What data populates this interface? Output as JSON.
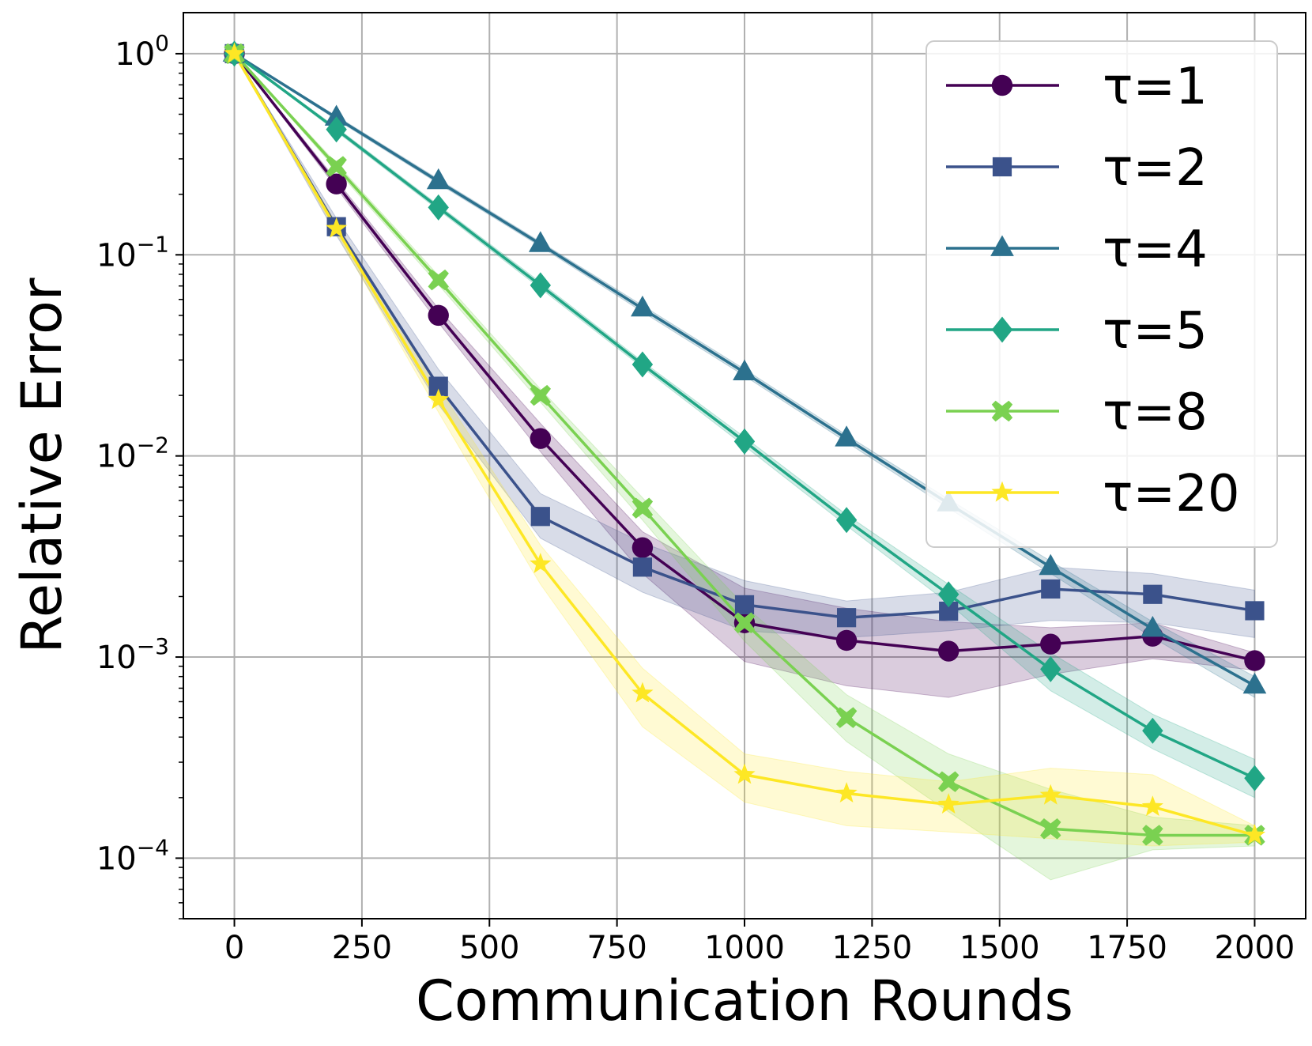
{
  "chart_data": {
    "type": "line",
    "yscale": "log",
    "xlabel": "Communication Rounds",
    "ylabel": "Relative Error",
    "xlim": [
      -100,
      2100
    ],
    "ylim": [
      5e-05,
      1.6
    ],
    "xticks": [
      0,
      250,
      500,
      750,
      1000,
      1250,
      1500,
      1750,
      2000
    ],
    "yticks": [
      {
        "value": 1,
        "base": "10",
        "exp": "0"
      },
      {
        "value": 0.1,
        "base": "10",
        "exp": "−1"
      },
      {
        "value": 0.01,
        "base": "10",
        "exp": "−2"
      },
      {
        "value": 0.001,
        "base": "10",
        "exp": "−3"
      },
      {
        "value": 0.0001,
        "base": "10",
        "exp": "−4"
      }
    ],
    "grid": true,
    "legend_position": "top-right",
    "x": [
      0,
      200,
      400,
      600,
      800,
      1000,
      1200,
      1400,
      1600,
      1800,
      2000
    ],
    "series": [
      {
        "name": "τ=1",
        "color": "#440154",
        "marker": "circle",
        "values": [
          1.0,
          0.225,
          0.05,
          0.0122,
          0.0035,
          0.00148,
          0.00121,
          0.00107,
          0.00116,
          0.00127,
          0.00096
        ],
        "lower": [
          1.0,
          0.215,
          0.046,
          0.0105,
          0.0026,
          0.00095,
          0.00072,
          0.00063,
          0.00082,
          0.00098,
          0.00086
        ],
        "upper": [
          1.0,
          0.235,
          0.054,
          0.0145,
          0.0042,
          0.0022,
          0.00175,
          0.0015,
          0.0014,
          0.00148,
          0.00105
        ]
      },
      {
        "name": "τ=2",
        "color": "#3b528b",
        "marker": "square",
        "values": [
          1.0,
          0.138,
          0.0222,
          0.005,
          0.0028,
          0.00182,
          0.00157,
          0.00169,
          0.00218,
          0.00205,
          0.0017
        ],
        "lower": [
          1.0,
          0.125,
          0.018,
          0.0039,
          0.0021,
          0.00135,
          0.00125,
          0.00135,
          0.00152,
          0.00148,
          0.00125
        ],
        "upper": [
          1.0,
          0.152,
          0.027,
          0.0065,
          0.0037,
          0.0024,
          0.0019,
          0.0021,
          0.0028,
          0.0026,
          0.00215
        ]
      },
      {
        "name": "τ=4",
        "color": "#21918c",
        "stroke": "#2c718e",
        "marker": "triangle",
        "values": [
          1.0,
          0.48,
          0.232,
          0.113,
          0.054,
          0.026,
          0.0122,
          0.0058,
          0.0028,
          0.00138,
          0.00072
        ],
        "lower": [
          1.0,
          0.47,
          0.226,
          0.11,
          0.052,
          0.025,
          0.0117,
          0.0055,
          0.0026,
          0.00125,
          0.00063
        ],
        "upper": [
          1.0,
          0.49,
          0.238,
          0.116,
          0.056,
          0.027,
          0.0127,
          0.0061,
          0.003,
          0.0015,
          0.0008
        ]
      },
      {
        "name": "τ=5",
        "color": "#21a685",
        "marker": "diamond",
        "values": [
          1.0,
          0.42,
          0.172,
          0.0705,
          0.0285,
          0.0118,
          0.0048,
          0.00205,
          0.00087,
          0.00043,
          0.00025
        ],
        "lower": [
          1.0,
          0.41,
          0.167,
          0.068,
          0.0275,
          0.0112,
          0.0045,
          0.00185,
          0.00068,
          0.00035,
          0.0002
        ],
        "upper": [
          1.0,
          0.43,
          0.177,
          0.073,
          0.0295,
          0.0124,
          0.0051,
          0.0023,
          0.00105,
          0.00052,
          0.00031
        ]
      },
      {
        "name": "τ=8",
        "color": "#7ad151",
        "marker": "x",
        "values": [
          1.0,
          0.275,
          0.075,
          0.02,
          0.0055,
          0.00148,
          0.0005,
          0.00024,
          0.00014,
          0.00013,
          0.00013
        ],
        "lower": [
          1.0,
          0.265,
          0.071,
          0.0185,
          0.0048,
          0.0012,
          0.00038,
          0.00017,
          7.8e-05,
          0.00011,
          0.000115
        ],
        "upper": [
          1.0,
          0.285,
          0.079,
          0.0215,
          0.0062,
          0.0018,
          0.00065,
          0.00033,
          0.00022,
          0.00016,
          0.000145
        ]
      },
      {
        "name": "τ=20",
        "color": "#fde725",
        "marker": "star",
        "values": [
          1.0,
          0.135,
          0.019,
          0.0029,
          0.00066,
          0.00026,
          0.00021,
          0.000185,
          0.000205,
          0.00018,
          0.00013
        ],
        "lower": [
          1.0,
          0.128,
          0.0165,
          0.0023,
          0.00045,
          0.00019,
          0.000145,
          0.000135,
          0.000125,
          0.000115,
          0.00012
        ],
        "upper": [
          1.0,
          0.143,
          0.022,
          0.0036,
          0.00088,
          0.00033,
          0.00027,
          0.00024,
          0.00028,
          0.00026,
          0.000145
        ]
      }
    ]
  }
}
